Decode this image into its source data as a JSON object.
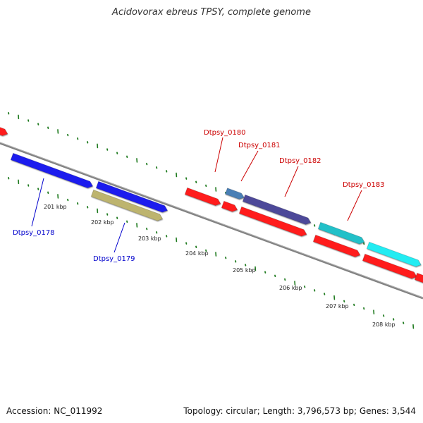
{
  "title": "Acidovorax ebreus TPSY, complete genome",
  "footer": {
    "accession": "Accession: NC_011992",
    "stats": "Topology: circular; Length: 3,796,573 bp; Genes: 3,544"
  },
  "colors": {
    "axis": "#808080",
    "tick": "#1e7a1e",
    "gene_label_forward": "#cc0000",
    "gene_label_reverse": "#0000cc"
  },
  "axis_ticks": [
    "201 kbp",
    "202 kbp",
    "203 kbp",
    "204 kbp",
    "205 kbp",
    "206 kbp",
    "207 kbp",
    "208 kbp"
  ],
  "gene_labels": [
    {
      "text": "Dtpsy_0178",
      "strand": "reverse"
    },
    {
      "text": "Dtpsy_0179",
      "strand": "reverse"
    },
    {
      "text": "Dtpsy_0180",
      "strand": "forward"
    },
    {
      "text": "Dtpsy_0181",
      "strand": "forward"
    },
    {
      "text": "Dtpsy_0182",
      "strand": "forward"
    },
    {
      "text": "Dtpsy_0183",
      "strand": "forward"
    }
  ],
  "features": [
    {
      "name": "feature-red-offpage-left",
      "color": "#ff1a1a"
    },
    {
      "name": "gene-dtpsy-0178",
      "color": "#1a1aee"
    },
    {
      "name": "gene-dtpsy-0178b",
      "color": "#1a1aee"
    },
    {
      "name": "gene-dtpsy-0179",
      "color": "#bdb46e"
    },
    {
      "name": "feature-red-1",
      "color": "#ff1a1a"
    },
    {
      "name": "feature-red-2",
      "color": "#ff1a1a"
    },
    {
      "name": "gene-dtpsy-0180",
      "color": "#4a7fb5"
    },
    {
      "name": "gene-dtpsy-0181",
      "color": "#4d4a99"
    },
    {
      "name": "feature-red-3",
      "color": "#ff1a1a"
    },
    {
      "name": "gene-dtpsy-0182",
      "color": "#22c0c8"
    },
    {
      "name": "feature-red-4",
      "color": "#ff1a1a"
    },
    {
      "name": "gene-dtpsy-0183",
      "color": "#22ecf2"
    },
    {
      "name": "feature-red-5",
      "color": "#ff1a1a"
    },
    {
      "name": "feature-red-6",
      "color": "#ff1a1a"
    }
  ]
}
